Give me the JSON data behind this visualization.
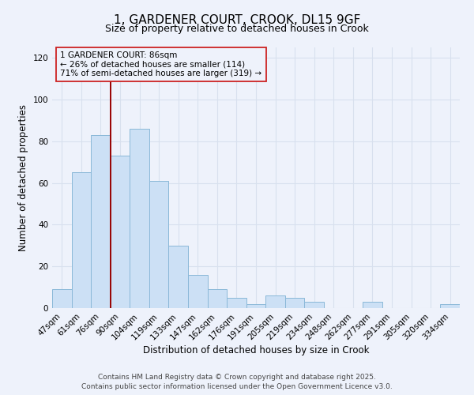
{
  "title": "1, GARDENER COURT, CROOK, DL15 9GF",
  "subtitle": "Size of property relative to detached houses in Crook",
  "xlabel": "Distribution of detached houses by size in Crook",
  "ylabel": "Number of detached properties",
  "categories": [
    "47sqm",
    "61sqm",
    "76sqm",
    "90sqm",
    "104sqm",
    "119sqm",
    "133sqm",
    "147sqm",
    "162sqm",
    "176sqm",
    "191sqm",
    "205sqm",
    "219sqm",
    "234sqm",
    "248sqm",
    "262sqm",
    "277sqm",
    "291sqm",
    "305sqm",
    "320sqm",
    "334sqm"
  ],
  "values": [
    9,
    65,
    83,
    73,
    86,
    61,
    30,
    16,
    9,
    5,
    2,
    6,
    5,
    3,
    0,
    0,
    3,
    0,
    0,
    0,
    2
  ],
  "bar_color": "#cce0f5",
  "bar_edge_color": "#8ab8d8",
  "vline_x_index": 2.5,
  "vline_color": "#990000",
  "ylim": [
    0,
    125
  ],
  "yticks": [
    0,
    20,
    40,
    60,
    80,
    100,
    120
  ],
  "annotation_title": "1 GARDENER COURT: 86sqm",
  "annotation_line1": "← 26% of detached houses are smaller (114)",
  "annotation_line2": "71% of semi-detached houses are larger (319) →",
  "footer_line1": "Contains HM Land Registry data © Crown copyright and database right 2025.",
  "footer_line2": "Contains public sector information licensed under the Open Government Licence v3.0.",
  "background_color": "#eef2fb",
  "grid_color": "#d8e0ee",
  "title_fontsize": 11,
  "subtitle_fontsize": 9,
  "axis_label_fontsize": 8.5,
  "tick_fontsize": 7.5,
  "footer_fontsize": 6.5,
  "annot_fontsize": 7.5
}
